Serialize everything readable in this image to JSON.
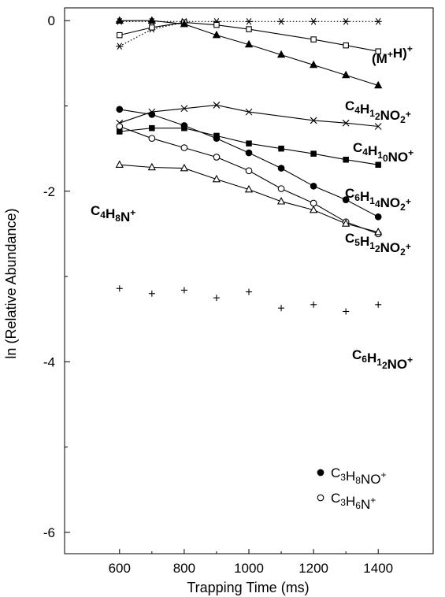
{
  "chart_data": {
    "type": "scatter",
    "xlabel": "Trapping Time (ms)",
    "ylabel": "ln (Relative Abundance)",
    "xlim": [
      430,
      1570
    ],
    "ylim": [
      -6.25,
      0.15
    ],
    "xticks": [
      600,
      800,
      1000,
      1200,
      1400
    ],
    "xtick_labels": [
      "600",
      "800",
      "1000",
      "1200",
      "1400"
    ],
    "yticks": [
      0,
      -2,
      -4,
      -6
    ],
    "ytick_labels": [
      "0",
      "-2",
      "-4",
      "-6"
    ],
    "grid": false,
    "series": [
      {
        "key": "mh",
        "marker": "star",
        "line": "dotted",
        "x": [
          600,
          700,
          800,
          900,
          1000,
          1100,
          1200,
          1300,
          1400
        ],
        "y": [
          -0.01,
          -0.01,
          -0.01,
          -0.01,
          -0.01,
          -0.01,
          -0.01,
          -0.01,
          -0.01
        ]
      },
      {
        "key": "mh_star_low",
        "marker": "star",
        "line": "dotted",
        "x": [
          600,
          700,
          800
        ],
        "y": [
          -0.3,
          -0.1,
          -0.02
        ]
      },
      {
        "key": "c4h12no2",
        "marker": "open-square",
        "line": "solid",
        "x": [
          600,
          700,
          800,
          900,
          1000,
          1200,
          1300,
          1400
        ],
        "y": [
          -0.17,
          -0.08,
          -0.02,
          -0.05,
          -0.1,
          -0.22,
          -0.29,
          -0.36
        ]
      },
      {
        "key": "c4h10no",
        "marker": "filled-triangle",
        "line": "solid",
        "x": [
          600,
          700,
          800,
          900,
          1000,
          1100,
          1200,
          1300,
          1400
        ],
        "y": [
          0,
          0,
          -0.04,
          -0.17,
          -0.28,
          -0.4,
          -0.52,
          -0.64,
          -0.76
        ]
      },
      {
        "key": "c6h14no2",
        "marker": "cross",
        "line": "solid",
        "x": [
          600,
          700,
          800,
          900,
          1000,
          1200,
          1300,
          1400
        ],
        "y": [
          -1.2,
          -1.07,
          -1.03,
          -0.99,
          -1.07,
          -1.17,
          -1.2,
          -1.24
        ]
      },
      {
        "key": "c5h12no2",
        "marker": "filled-square",
        "line": "solid",
        "x": [
          600,
          700,
          800,
          900,
          1000,
          1100,
          1200,
          1300,
          1400
        ],
        "y": [
          -1.3,
          -1.26,
          -1.26,
          -1.35,
          -1.44,
          -1.5,
          -1.56,
          -1.63,
          -1.69
        ]
      },
      {
        "key": "c3h8no",
        "name": "C3H8NO+",
        "marker": "filled-circle",
        "line": "solid",
        "x": [
          600,
          700,
          800,
          900,
          1000,
          1100,
          1200,
          1300,
          1400
        ],
        "y": [
          -1.04,
          -1.1,
          -1.23,
          -1.38,
          -1.55,
          -1.73,
          -1.94,
          -2.1,
          -2.3
        ]
      },
      {
        "key": "c3h6n",
        "name": "C3H6N+",
        "marker": "open-circle",
        "line": "solid",
        "x": [
          600,
          700,
          800,
          900,
          1000,
          1100,
          1200,
          1300,
          1400
        ],
        "y": [
          -1.24,
          -1.38,
          -1.49,
          -1.6,
          -1.76,
          -1.97,
          -2.14,
          -2.36,
          -2.5
        ]
      },
      {
        "key": "c4h8n",
        "marker": "open-triangle",
        "line": "solid",
        "x": [
          600,
          700,
          800,
          900,
          1000,
          1100,
          1200,
          1300,
          1400
        ],
        "y": [
          -1.69,
          -1.72,
          -1.73,
          -1.86,
          -1.98,
          -2.12,
          -2.22,
          -2.38,
          -2.48
        ]
      },
      {
        "key": "c6h12no",
        "marker": "plus",
        "line": "none",
        "x": [
          600,
          700,
          800,
          900,
          1000,
          1100,
          1200,
          1300,
          1400
        ],
        "y": [
          -3.14,
          -3.2,
          -3.16,
          -3.25,
          -3.18,
          -3.37,
          -3.33,
          -3.41,
          -3.33
        ]
      }
    ],
    "labels": [
      {
        "key": "mh",
        "text": "(M+H)+"
      },
      {
        "key": "c4h12no2",
        "text": "C4H12NO2+"
      },
      {
        "key": "c4h10no",
        "text": "C4H10NO+"
      },
      {
        "key": "c6h14no2",
        "text": "C6H14NO2+"
      },
      {
        "key": "c5h12no2",
        "text": "C5H12NO2+"
      },
      {
        "key": "c4h8n",
        "text": "C4H8N+"
      },
      {
        "key": "c6h12no",
        "text": "C6H12NO+"
      }
    ],
    "legend": {
      "placement": "lower-right",
      "entries": [
        {
          "marker": "filled-circle",
          "text": "C3H8NO+"
        },
        {
          "marker": "open-circle",
          "text": "C3H6N+"
        }
      ]
    }
  }
}
